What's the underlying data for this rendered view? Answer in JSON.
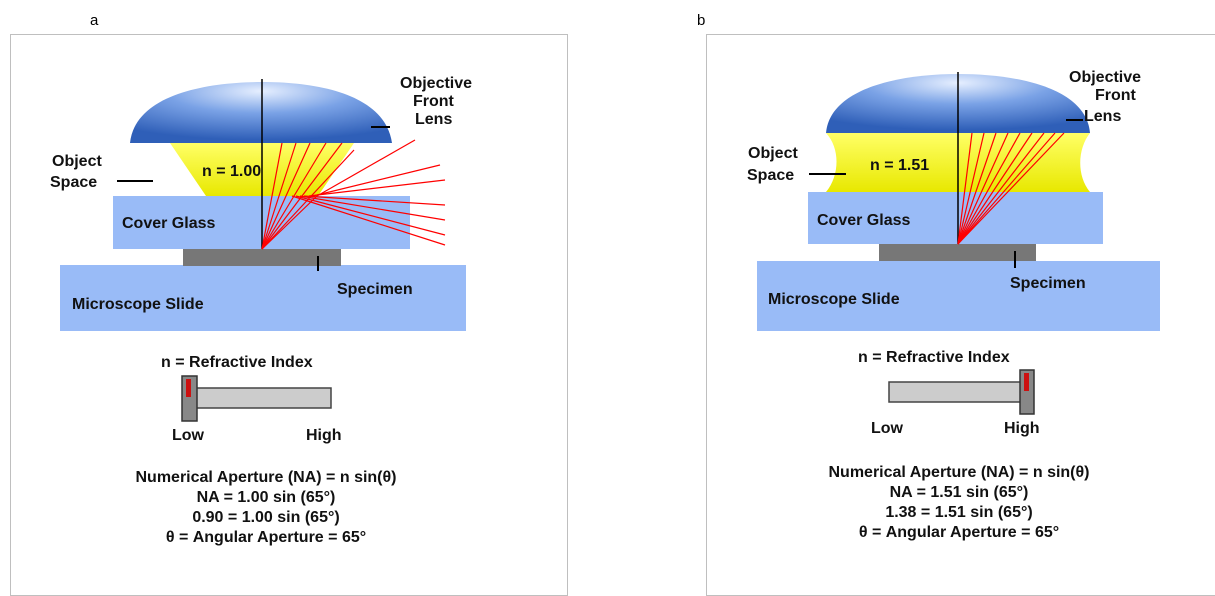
{
  "panels": [
    {
      "letter": "a",
      "n_label": "n = 1.00",
      "slider_position": "low",
      "equations": {
        "line1": "Numerical Aperture (NA) = n sin(θ)",
        "line2": "NA = 1.00 sin (65°)",
        "line3": "0.90 = 1.00 sin (65°)",
        "line4": "θ = Angular Aperture = 65°"
      }
    },
    {
      "letter": "b",
      "n_label": "n = 1.51",
      "slider_position": "high",
      "equations": {
        "line1": "Numerical Aperture (NA) = n sin(θ)",
        "line2": "NA = 1.51 sin (65°)",
        "line3": "1.38 = 1.51 sin (65°)",
        "line4": "θ = Angular Aperture = 65°"
      }
    }
  ],
  "labels": {
    "objective_l1": "Objective",
    "objective_l2": "Front",
    "objective_l3": "Lens",
    "object_l1": "Object",
    "object_l2": "Space",
    "cover_glass": "Cover Glass",
    "specimen": "Specimen",
    "microscope_slide": "Microscope Slide",
    "refractive_index": "n = Refractive Index",
    "low": "Low",
    "high": "High"
  },
  "colors": {
    "glass_blue": "#99bbf7",
    "immersion_yellow": "#f4f41c",
    "ray_red": "#ff0000",
    "specimen_gray": "#777777",
    "slider_track": "#cccccc",
    "knob_red": "#cc1111"
  }
}
